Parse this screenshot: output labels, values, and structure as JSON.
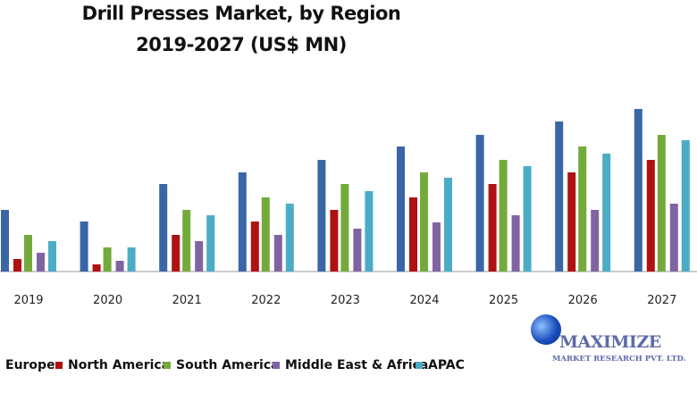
{
  "chart_data": {
    "type": "bar",
    "title": "Drill Presses Market, by Region",
    "subtitle": "2019-2027 (US$ MN)",
    "xlabel": "",
    "ylabel": "",
    "categories": [
      "2019",
      "2020",
      "2021",
      "2022",
      "2023",
      "2024",
      "2025",
      "2026",
      "2027"
    ],
    "ylim": [
      0,
      200
    ],
    "grid": false,
    "legend_position": "bottom",
    "series": [
      {
        "name": "Europe",
        "color": "#3a66a5",
        "values": [
          69,
          56,
          98,
          111,
          125,
          140,
          153,
          168,
          182
        ]
      },
      {
        "name": "North America",
        "color": "#b01212",
        "values": [
          14,
          8,
          41,
          56,
          69,
          83,
          98,
          111,
          125
        ]
      },
      {
        "name": "South America",
        "color": "#74aa3c",
        "values": [
          41,
          27,
          69,
          83,
          98,
          111,
          125,
          140,
          153
        ]
      },
      {
        "name": "Middle East & Africa",
        "color": "#8064a2",
        "values": [
          21,
          12,
          34,
          41,
          48,
          55,
          63,
          69,
          76
        ]
      },
      {
        "name": "APAC",
        "color": "#4bacc6",
        "values": [
          34,
          27,
          63,
          76,
          90,
          105,
          118,
          132,
          147
        ]
      }
    ]
  },
  "logo": {
    "line1": "MAXIMIZE",
    "line2": "MARKET RESEARCH PVT. LTD."
  }
}
